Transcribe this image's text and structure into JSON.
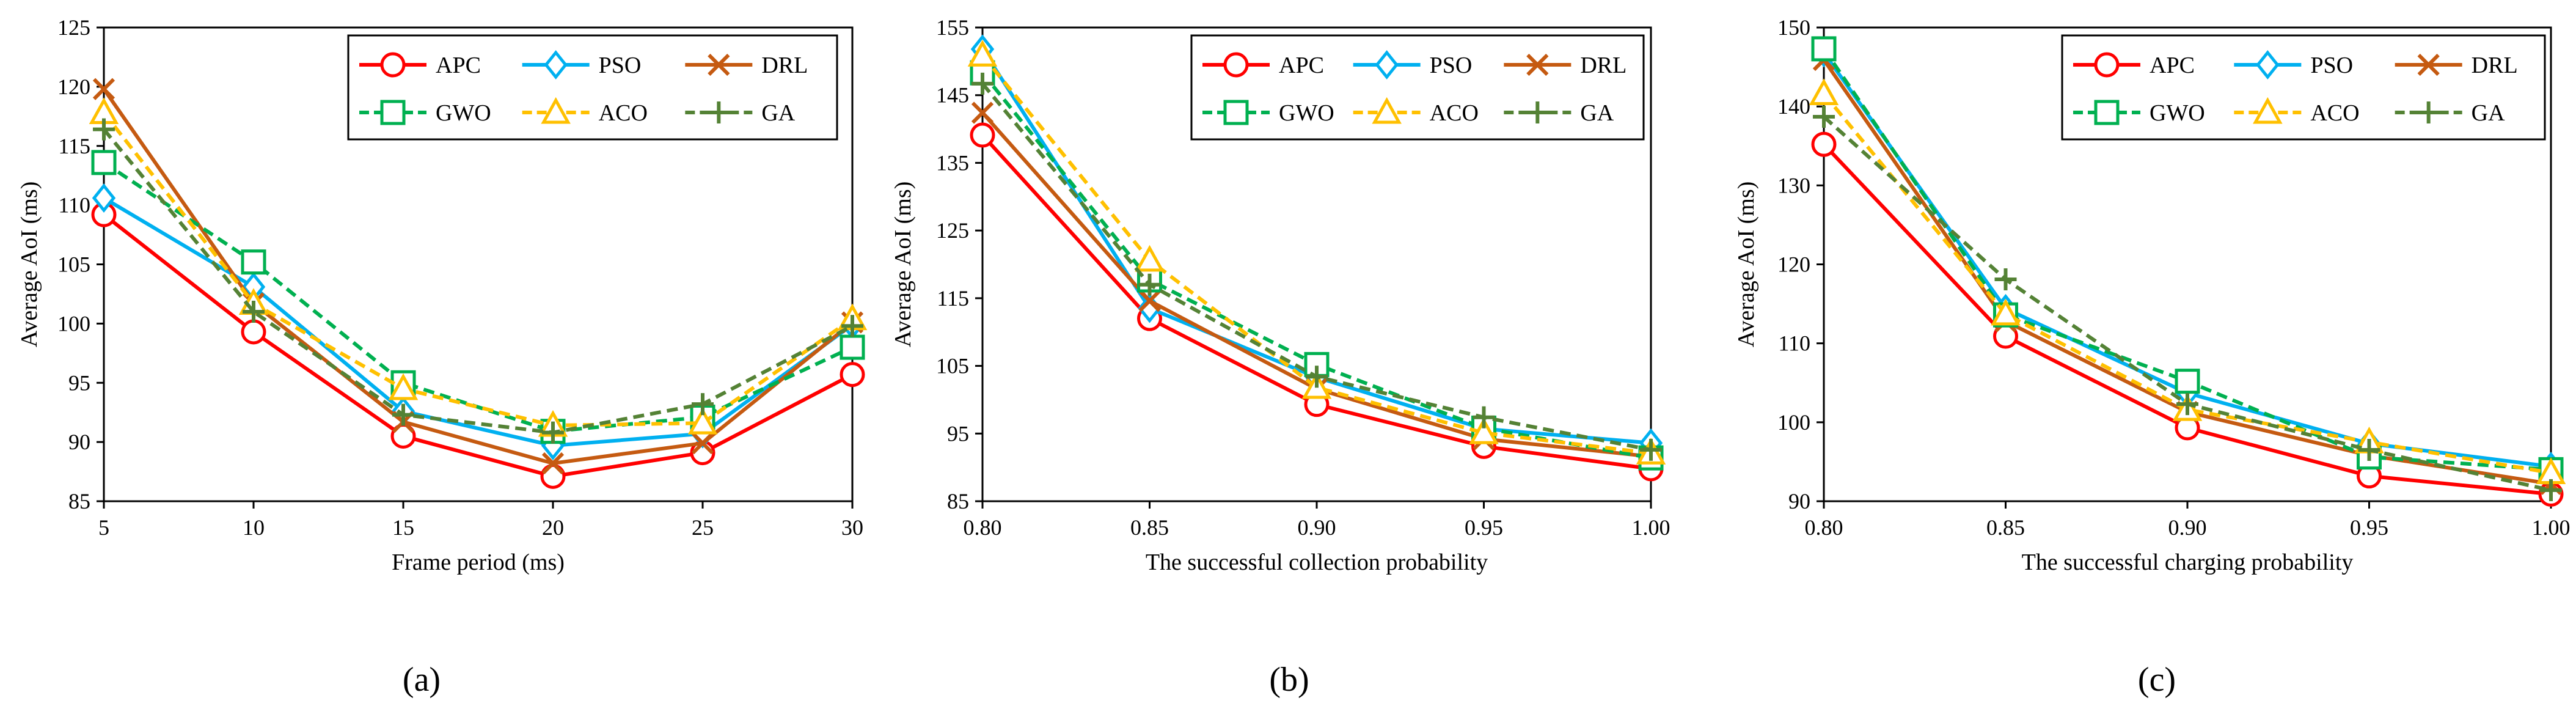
{
  "chart_data": [
    {
      "type": "line",
      "caption": "(a)",
      "xlabel": "Frame period (ms)",
      "ylabel": "Average AoI (ms)",
      "x": [
        5,
        10,
        15,
        20,
        25,
        30
      ],
      "x_tick_labels": [
        "5",
        "10",
        "15",
        "20",
        "25",
        "30"
      ],
      "xlim": [
        5,
        30
      ],
      "ylim": [
        85,
        125
      ],
      "y_ticks": [
        85,
        90,
        95,
        100,
        105,
        110,
        115,
        120,
        125
      ],
      "legend_position": "top-right",
      "series": [
        {
          "name": "APC",
          "values": [
            109.2,
            99.3,
            90.5,
            87.1,
            89.1,
            95.7
          ]
        },
        {
          "name": "PSO",
          "values": [
            110.6,
            103.1,
            92.6,
            89.7,
            90.7,
            99.9
          ]
        },
        {
          "name": "DRL",
          "values": [
            119.8,
            101.7,
            91.7,
            88.2,
            89.9,
            100.1
          ]
        },
        {
          "name": "GWO",
          "values": [
            113.6,
            105.2,
            95.0,
            90.9,
            92.1,
            98.0
          ]
        },
        {
          "name": "ACO",
          "values": [
            117.8,
            101.7,
            94.5,
            91.4,
            91.6,
            100.4
          ]
        },
        {
          "name": "GA",
          "values": [
            116.4,
            101.0,
            92.3,
            90.8,
            93.2,
            99.8
          ]
        }
      ]
    },
    {
      "type": "line",
      "caption": "(b)",
      "xlabel": "The successful collection probability",
      "ylabel": "Average AoI (ms)",
      "x": [
        0.8,
        0.85,
        0.9,
        0.95,
        1.0
      ],
      "x_tick_labels": [
        "0.80",
        "0.85",
        "0.90",
        "0.95",
        "1.00"
      ],
      "xlim": [
        0.8,
        1.0
      ],
      "ylim": [
        85,
        155
      ],
      "y_ticks": [
        85,
        95,
        105,
        115,
        125,
        135,
        145,
        155
      ],
      "legend_position": "top-right",
      "series": [
        {
          "name": "APC",
          "values": [
            139.1,
            112.0,
            99.3,
            93.1,
            89.8
          ]
        },
        {
          "name": "PSO",
          "values": [
            151.8,
            113.5,
            103.3,
            95.7,
            93.6
          ]
        },
        {
          "name": "DRL",
          "values": [
            142.4,
            114.6,
            101.6,
            94.2,
            91.6
          ]
        },
        {
          "name": "GWO",
          "values": [
            148.3,
            117.7,
            105.2,
            95.8,
            91.4
          ]
        },
        {
          "name": "ACO",
          "values": [
            150.9,
            120.6,
            101.8,
            95.1,
            92.1
          ]
        },
        {
          "name": "GA",
          "values": [
            146.7,
            117.0,
            103.4,
            97.4,
            92.6
          ]
        }
      ]
    },
    {
      "type": "line",
      "caption": "(c)",
      "xlabel": "The successful charging probability",
      "ylabel": "Average AoI (ms)",
      "x": [
        0.8,
        0.85,
        0.9,
        0.95,
        1.0
      ],
      "x_tick_labels": [
        "0.80",
        "0.85",
        "0.90",
        "0.95",
        "1.00"
      ],
      "xlim": [
        0.8,
        1.0
      ],
      "ylim": [
        90,
        150
      ],
      "y_ticks": [
        90,
        100,
        110,
        120,
        130,
        140,
        150
      ],
      "legend_position": "top-right",
      "series": [
        {
          "name": "APC",
          "values": [
            135.2,
            110.9,
            99.3,
            93.2,
            90.9
          ]
        },
        {
          "name": "PSO",
          "values": [
            146.8,
            114.4,
            103.7,
            97.3,
            94.4
          ]
        },
        {
          "name": "DRL",
          "values": [
            145.9,
            112.8,
            101.3,
            95.8,
            92.2
          ]
        },
        {
          "name": "GWO",
          "values": [
            147.3,
            113.6,
            105.2,
            95.6,
            94.0
          ]
        },
        {
          "name": "ACO",
          "values": [
            141.6,
            113.7,
            101.6,
            97.5,
            93.6
          ]
        },
        {
          "name": "GA",
          "values": [
            138.7,
            118.1,
            102.3,
            96.5,
            91.4
          ]
        }
      ]
    }
  ],
  "series_styles": [
    {
      "name": "APC",
      "color": "#ff0000",
      "dash": "solid",
      "marker": "circle"
    },
    {
      "name": "PSO",
      "color": "#00b0f0",
      "dash": "solid",
      "marker": "diamond"
    },
    {
      "name": "DRL",
      "color": "#c55a11",
      "dash": "solid",
      "marker": "x"
    },
    {
      "name": "GWO",
      "color": "#00b050",
      "dash": "dashed",
      "marker": "square"
    },
    {
      "name": "ACO",
      "color": "#ffc000",
      "dash": "dashed",
      "marker": "triangle"
    },
    {
      "name": "GA",
      "color": "#548235",
      "dash": "dashed",
      "marker": "plus"
    }
  ]
}
